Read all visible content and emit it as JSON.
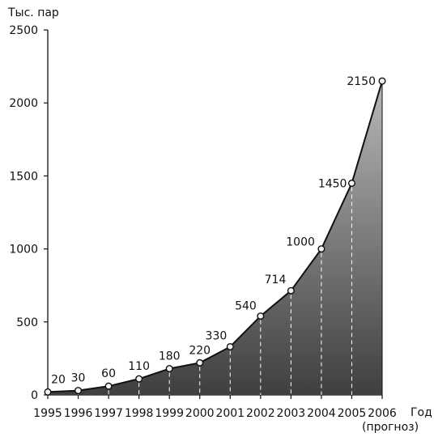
{
  "chart_data": {
    "type": "area",
    "ylabel": "Тыс. пар",
    "xlabel": "Год",
    "xlabel_note": "(прогноз)",
    "x": [
      "1995",
      "1996",
      "1997",
      "1998",
      "1999",
      "2000",
      "2001",
      "2002",
      "2003",
      "2004",
      "2005",
      "2006"
    ],
    "values": [
      20,
      30,
      60,
      110,
      180,
      220,
      330,
      540,
      714,
      1000,
      1450,
      2150
    ],
    "ylim": [
      0,
      2500
    ],
    "yticks": [
      "0",
      "500",
      "1000",
      "1500",
      "2000",
      "2500"
    ],
    "grid": false,
    "colors": {
      "line": "#111111",
      "area_top": "#b8b8b8",
      "area_bottom": "#3f3f3f",
      "marker_fill": "#f2f2f2",
      "guide": "#ffffff"
    }
  }
}
